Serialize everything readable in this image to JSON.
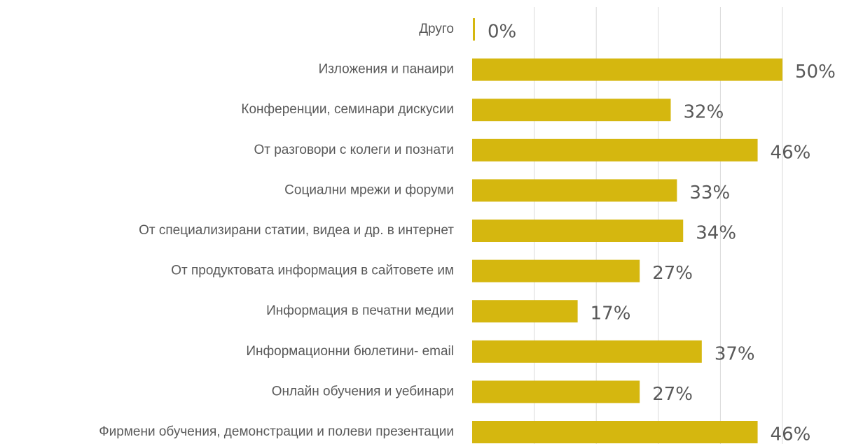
{
  "chart_data": {
    "type": "barh",
    "categories": [
      "Друго",
      "Изложения и панаири",
      "Конференции, семинари дискусии",
      "От разговори с колеги и познати",
      "Социални мрежи и форуми",
      "От специализирани статии, видеа и др. в интернет",
      "От продуктовата информация в сайтовете им",
      "Информация в печатни медии",
      "Информационни бюлетини- email",
      "Онлайн обучения и уебинари",
      "Фирмени обучения, демонстрации и полеви презентации"
    ],
    "values": [
      0,
      50,
      32,
      46,
      33,
      34,
      27,
      17,
      37,
      27,
      46
    ],
    "value_labels": [
      "0%",
      "50%",
      "32%",
      "46%",
      "33%",
      "34%",
      "27%",
      "17%",
      "37%",
      "27%",
      "46%"
    ],
    "color": "#d5b70f",
    "xlim": [
      0,
      50
    ],
    "xticks": [
      0,
      10,
      20,
      30,
      40,
      50
    ],
    "grid": true
  }
}
